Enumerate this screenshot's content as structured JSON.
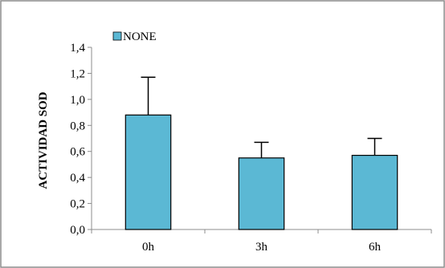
{
  "chart_data": {
    "type": "bar",
    "categories": [
      "0h",
      "3h",
      "6h"
    ],
    "series": [
      {
        "name": "NONE",
        "values": [
          0.88,
          0.55,
          0.57
        ],
        "errors": [
          0.29,
          0.12,
          0.13
        ],
        "color": "#5BB8D4"
      }
    ],
    "title": "",
    "xlabel": "",
    "ylabel": "ACTIVIDAD SOD",
    "ylim": [
      0,
      1.4
    ],
    "yticks": [
      "0,0",
      "0,2",
      "0,4",
      "0,6",
      "0,8",
      "1,0",
      "1,2",
      "1,4"
    ],
    "grid": false,
    "legend": "top-left"
  }
}
